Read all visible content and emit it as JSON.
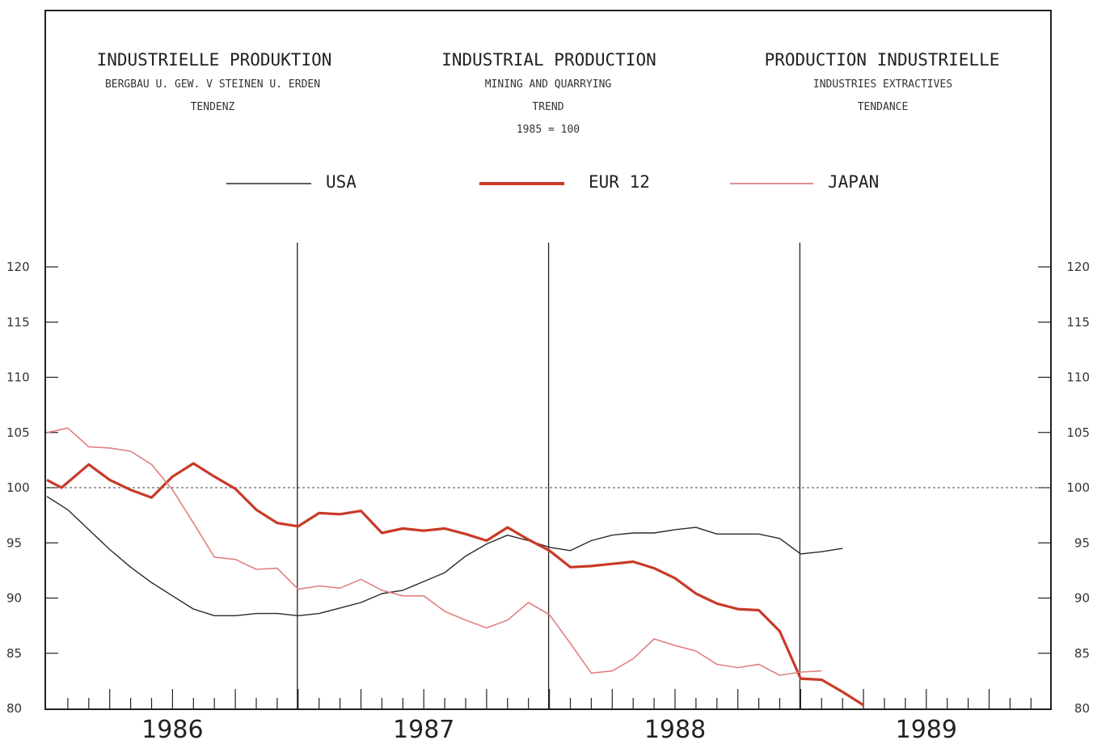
{
  "titles": {
    "de": {
      "title": "INDUSTRIELLE PRODUKTION",
      "subtitle": "BERGBAU U. GEW. V STEINEN U. ERDEN",
      "note": "TENDENZ"
    },
    "en": {
      "title": "INDUSTRIAL PRODUCTION",
      "subtitle": "MINING AND QUARRYING",
      "note": "TREND",
      "base": "1985 = 100"
    },
    "fr": {
      "title": "PRODUCTION INDUSTRIELLE",
      "subtitle": "INDUSTRIES EXTRACTIVES",
      "note": "TENDANCE"
    }
  },
  "legend": [
    {
      "label": "USA",
      "color": "#2a2a2a"
    },
    {
      "label": "EUR 12",
      "color": "#c83a28"
    },
    {
      "label": "JAPAN",
      "color": "#e08080"
    }
  ],
  "chart_data": {
    "type": "line",
    "x_unit": "month index (0 = Jan 1986)",
    "x_years": [
      "1986",
      "1987",
      "1988",
      "1989"
    ],
    "ylim": [
      80,
      120
    ],
    "yticks": [
      120,
      115,
      110,
      105,
      100,
      95,
      90,
      85,
      80
    ],
    "reference_line": 100,
    "year_dividers": [
      "1986/1987",
      "1987/1988",
      "1988/1989"
    ],
    "series": [
      {
        "name": "USA",
        "color": "#2a2a2a",
        "x": [
          0,
          1,
          2,
          3,
          4,
          5,
          6,
          7,
          8,
          9,
          10,
          11,
          12,
          13,
          14,
          15,
          16,
          17,
          18,
          19,
          20,
          21,
          22,
          23,
          24,
          25,
          26,
          27,
          28,
          29,
          30,
          31,
          32,
          33,
          34,
          35,
          36,
          37,
          38
        ],
        "values": [
          99.2,
          98.0,
          96.2,
          94.4,
          92.8,
          91.4,
          90.2,
          89.0,
          88.4,
          88.4,
          88.6,
          88.6,
          88.4,
          88.6,
          89.1,
          89.6,
          90.4,
          90.7,
          91.5,
          92.3,
          93.8,
          94.9,
          95.7,
          95.2,
          94.6,
          94.3,
          95.2,
          95.7,
          95.9,
          95.9,
          96.2,
          96.4,
          95.8,
          95.8,
          95.8,
          95.4,
          94.0,
          94.2,
          94.5
        ]
      },
      {
        "name": "EUR 12",
        "color": "#c83a28",
        "x": [
          0,
          0.7,
          2,
          3,
          4,
          5,
          6,
          7,
          8,
          9,
          10,
          11,
          12,
          13,
          14,
          15,
          16,
          17,
          18,
          19,
          20,
          21,
          22,
          23,
          24,
          25,
          26,
          27,
          28,
          29,
          30,
          31,
          32,
          33,
          34,
          35,
          36,
          37,
          38,
          39
        ],
        "values": [
          100.7,
          100.0,
          102.1,
          100.7,
          99.8,
          99.1,
          101.0,
          102.2,
          101.0,
          99.9,
          98.0,
          96.8,
          96.5,
          97.7,
          97.6,
          97.9,
          95.9,
          96.3,
          96.1,
          96.3,
          95.8,
          95.2,
          96.4,
          95.3,
          94.3,
          92.8,
          92.9,
          93.1,
          93.3,
          92.7,
          91.8,
          90.4,
          89.5,
          89.0,
          88.9,
          87.0,
          82.7,
          82.6,
          81.5,
          80.3
        ]
      },
      {
        "name": "JAPAN",
        "color": "#e08080",
        "x": [
          0,
          1,
          2,
          3,
          4,
          5,
          6,
          7,
          8,
          9,
          10,
          11,
          12,
          13,
          14,
          15,
          16,
          17,
          18,
          19,
          20,
          21,
          22,
          23,
          24,
          25,
          26,
          27,
          28,
          29,
          30,
          31,
          32,
          33,
          34,
          35,
          36,
          37
        ],
        "values": [
          105.0,
          105.4,
          103.7,
          103.6,
          103.3,
          102.1,
          99.8,
          96.8,
          93.7,
          93.5,
          92.6,
          92.7,
          90.8,
          91.1,
          90.9,
          91.7,
          90.7,
          90.2,
          90.2,
          88.8,
          88.0,
          87.3,
          88.0,
          89.6,
          88.5,
          85.9,
          83.2,
          83.4,
          84.5,
          86.3,
          85.7,
          85.2,
          84.0,
          83.7,
          84.0,
          83.0,
          83.3,
          83.4
        ]
      }
    ]
  }
}
